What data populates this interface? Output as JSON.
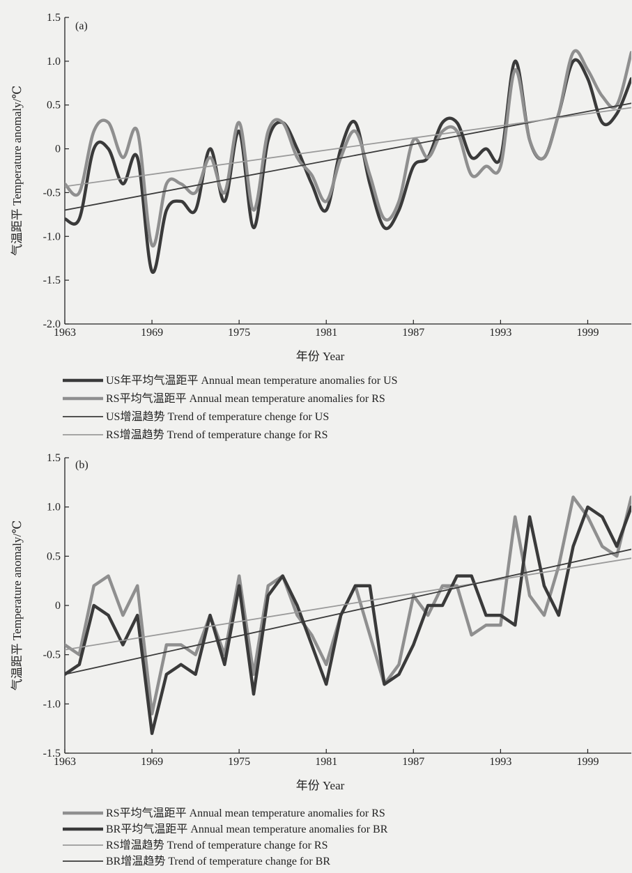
{
  "chart_data": [
    {
      "type": "line",
      "panel_label": "(a)",
      "xlabel": "年份 Year",
      "ylabel": "气温距平 Temperature anomaly/℃",
      "xlim": [
        1963,
        2002
      ],
      "ylim": [
        -2.0,
        1.5
      ],
      "x_ticks": [
        1963,
        1969,
        1975,
        1981,
        1987,
        1993,
        1999
      ],
      "y_ticks": [
        {
          "value": 1.5,
          "label": "1.5"
        },
        {
          "value": 1.0,
          "label": "1.0"
        },
        {
          "value": 0.5,
          "label": "0.5"
        },
        {
          "value": 0.0,
          "label": "0"
        },
        {
          "value": -0.5,
          "label": "-0.5"
        },
        {
          "value": -1.0,
          "label": "-1.0"
        },
        {
          "value": -1.5,
          "label": "-1.5"
        },
        {
          "value": -2.0,
          "label": "-2.0"
        }
      ],
      "x": [
        1963,
        1964,
        1965,
        1966,
        1967,
        1968,
        1969,
        1970,
        1971,
        1972,
        1973,
        1974,
        1975,
        1976,
        1977,
        1978,
        1979,
        1980,
        1981,
        1982,
        1983,
        1984,
        1985,
        1986,
        1987,
        1988,
        1989,
        1990,
        1991,
        1992,
        1993,
        1994,
        1995,
        1996,
        1997,
        1998,
        1999,
        2000,
        2001,
        2002
      ],
      "series": [
        {
          "name": "US年平均气温距平 Annual mean temperature anomalies for US",
          "kind": "data",
          "color": "#3a3a3a",
          "width": 4.5,
          "values": [
            -0.8,
            -0.8,
            0.0,
            0.0,
            -0.4,
            -0.1,
            -1.4,
            -0.7,
            -0.6,
            -0.7,
            0.0,
            -0.6,
            0.2,
            -0.9,
            0.1,
            0.3,
            0.0,
            -0.4,
            -0.7,
            0.0,
            0.3,
            -0.4,
            -0.9,
            -0.7,
            -0.2,
            -0.1,
            0.3,
            0.3,
            -0.1,
            0.0,
            -0.1,
            1.0,
            0.1,
            -0.1,
            0.4,
            1.0,
            0.8,
            0.3,
            0.4,
            0.8
          ]
        },
        {
          "name": "RS平均气温距平 Annual mean temperature anomalies for RS",
          "kind": "data",
          "color": "#8f8f8f",
          "width": 4.5,
          "values": [
            -0.4,
            -0.5,
            0.2,
            0.3,
            -0.1,
            0.2,
            -1.1,
            -0.4,
            -0.4,
            -0.5,
            -0.1,
            -0.5,
            0.3,
            -0.7,
            0.2,
            0.3,
            -0.1,
            -0.3,
            -0.6,
            -0.1,
            0.2,
            -0.3,
            -0.8,
            -0.6,
            0.1,
            -0.1,
            0.2,
            0.2,
            -0.3,
            -0.2,
            -0.2,
            0.9,
            0.1,
            -0.1,
            0.4,
            1.1,
            0.9,
            0.6,
            0.5,
            1.1
          ]
        },
        {
          "name": "US增温趋势 Trend of temperature chenge for US",
          "kind": "trend",
          "color": "#3a3a3a",
          "width": 1.8,
          "x": [
            1963,
            2002
          ],
          "values": [
            -0.7,
            0.52
          ]
        },
        {
          "name": "RS增温趋势 Trend of temperature change for RS",
          "kind": "trend",
          "color": "#9a9a9a",
          "width": 1.8,
          "x": [
            1963,
            2002
          ],
          "values": [
            -0.43,
            0.47
          ]
        }
      ],
      "legend": [
        {
          "label": "US年平均气温距平 Annual mean temperature anomalies for US",
          "color": "#3a3a3a",
          "width": 4.5
        },
        {
          "label": "RS平均气温距平 Annual mean temperature anomalies for RS",
          "color": "#8f8f8f",
          "width": 4.5
        },
        {
          "label": "US增温趋势 Trend of temperature chenge for US",
          "color": "#3a3a3a",
          "width": 1.8
        },
        {
          "label": "RS增温趋势 Trend of temperature change for RS",
          "color": "#9a9a9a",
          "width": 1.8
        }
      ]
    },
    {
      "type": "line",
      "panel_label": "(b)",
      "xlabel": "年份 Year",
      "ylabel": "气温距平 Temperature anomaly/℃",
      "xlim": [
        1963,
        2002
      ],
      "ylim": [
        -1.5,
        1.5
      ],
      "x_ticks": [
        1963,
        1969,
        1975,
        1981,
        1987,
        1993,
        1999
      ],
      "y_ticks": [
        {
          "value": 1.5,
          "label": "1.5"
        },
        {
          "value": 1.0,
          "label": "1.0"
        },
        {
          "value": 0.5,
          "label": "0.5"
        },
        {
          "value": 0.0,
          "label": "0"
        },
        {
          "value": -0.5,
          "label": "-0.5"
        },
        {
          "value": -1.0,
          "label": "-1.0"
        },
        {
          "value": -1.5,
          "label": "-1.5"
        }
      ],
      "x": [
        1963,
        1964,
        1965,
        1966,
        1967,
        1968,
        1969,
        1970,
        1971,
        1972,
        1973,
        1974,
        1975,
        1976,
        1977,
        1978,
        1979,
        1980,
        1981,
        1982,
        1983,
        1984,
        1985,
        1986,
        1987,
        1988,
        1989,
        1990,
        1991,
        1992,
        1993,
        1994,
        1995,
        1996,
        1997,
        1998,
        1999,
        2000,
        2001,
        2002
      ],
      "series": [
        {
          "name": "RS平均气温距平 Annual mean temperature anomalies for RS",
          "kind": "data",
          "color": "#8f8f8f",
          "width": 4.5,
          "values": [
            -0.4,
            -0.5,
            0.2,
            0.3,
            -0.1,
            0.2,
            -1.1,
            -0.4,
            -0.4,
            -0.5,
            -0.1,
            -0.5,
            0.3,
            -0.7,
            0.2,
            0.3,
            -0.1,
            -0.3,
            -0.6,
            -0.1,
            0.2,
            -0.3,
            -0.8,
            -0.6,
            0.1,
            -0.1,
            0.2,
            0.2,
            -0.3,
            -0.2,
            -0.2,
            0.9,
            0.1,
            -0.1,
            0.4,
            1.1,
            0.9,
            0.6,
            0.5,
            1.1
          ]
        },
        {
          "name": "BR平均气温距平 Annual mean temperature anomalies for BR",
          "kind": "data",
          "color": "#3a3a3a",
          "width": 4.5,
          "values": [
            -0.7,
            -0.6,
            0.0,
            -0.1,
            -0.4,
            -0.1,
            -1.3,
            -0.7,
            -0.6,
            -0.7,
            -0.1,
            -0.6,
            0.2,
            -0.9,
            0.1,
            0.3,
            0.0,
            -0.4,
            -0.8,
            -0.1,
            0.2,
            0.2,
            -0.8,
            -0.7,
            -0.4,
            0.0,
            0.0,
            0.3,
            0.3,
            -0.1,
            -0.1,
            -0.2,
            0.9,
            0.2,
            -0.1,
            0.6,
            1.0,
            0.9,
            0.6,
            1.0
          ]
        },
        {
          "name": "RS增温趋势 Trend of temperature change for RS",
          "kind": "trend",
          "color": "#9a9a9a",
          "width": 1.8,
          "x": [
            1963,
            2002
          ],
          "values": [
            -0.45,
            0.48
          ]
        },
        {
          "name": "BR增温趋势 Trend of temperature change for BR",
          "kind": "trend",
          "color": "#3a3a3a",
          "width": 1.8,
          "x": [
            1963,
            2002
          ],
          "values": [
            -0.7,
            0.57
          ]
        }
      ],
      "legend": [
        {
          "label": "RS平均气温距平 Annual mean temperature anomalies for RS",
          "color": "#8f8f8f",
          "width": 4.5
        },
        {
          "label": "BR平均气温距平 Annual mean temperature anomalies for BR",
          "color": "#3a3a3a",
          "width": 4.5
        },
        {
          "label": "RS增温趋势 Trend of temperature change for RS",
          "color": "#9a9a9a",
          "width": 1.8
        },
        {
          "label": "BR增温趋势 Trend of temperature change for BR",
          "color": "#3a3a3a",
          "width": 1.8
        }
      ]
    }
  ]
}
